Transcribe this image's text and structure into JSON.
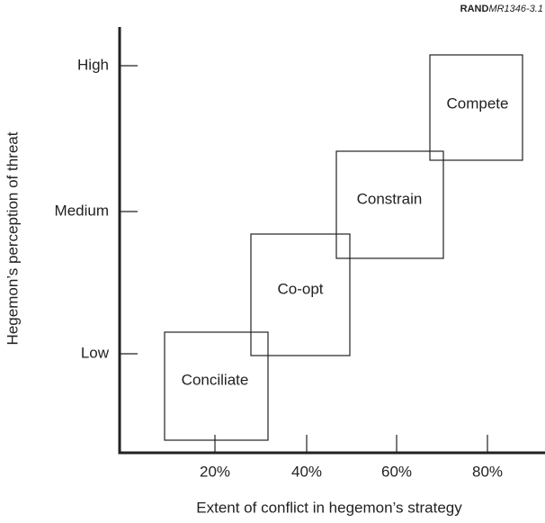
{
  "credit": {
    "org": "RAND",
    "id": "MR1346-3.1"
  },
  "y_axis": {
    "label": "Hegemon’s perception of threat",
    "ticks": [
      "High",
      "Medium",
      "Low"
    ]
  },
  "x_axis": {
    "label": "Extent of conflict in hegemon’s strategy",
    "ticks": [
      "20%",
      "40%",
      "60%",
      "80%"
    ]
  },
  "nodes": [
    {
      "label": "Conciliate"
    },
    {
      "label": "Co-opt"
    },
    {
      "label": "Constrain"
    },
    {
      "label": "Compete"
    }
  ]
}
